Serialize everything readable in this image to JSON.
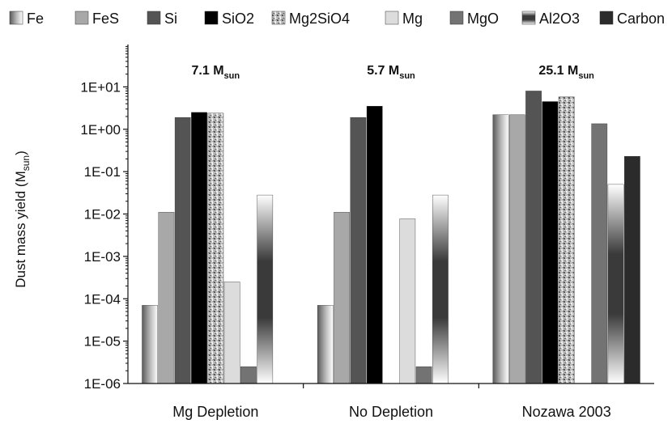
{
  "chart_data": {
    "type": "bar",
    "scale": "log",
    "title": "",
    "xlabel": "",
    "ylabel": "Dust mass yield (M",
    "ylabel_sub": "sun",
    "ylabel_end": ")",
    "ylim": [
      1e-06,
      100
    ],
    "yticks": [
      {
        "value": 1e-06,
        "label": "1E-06"
      },
      {
        "value": 1e-05,
        "label": "1E-05"
      },
      {
        "value": 0.0001,
        "label": "1E-04"
      },
      {
        "value": 0.001,
        "label": "1E-03"
      },
      {
        "value": 0.01,
        "label": "1E-02"
      },
      {
        "value": 0.1,
        "label": "1E-01"
      },
      {
        "value": 1,
        "label": "1E+00"
      },
      {
        "value": 10,
        "label": "1E+01"
      }
    ],
    "categories": [
      "Mg Depletion",
      "No Depletion",
      "Nozawa 2003"
    ],
    "annotations": [
      {
        "main": "7.1 M",
        "sub": "sun"
      },
      {
        "main": "5.7 M",
        "sub": "sun"
      },
      {
        "main": "25.1 M",
        "sub": "sun"
      }
    ],
    "legend_position": "top",
    "series": [
      {
        "name": "Fe",
        "fill": "grad-fe",
        "values": [
          7e-05,
          7e-05,
          2.2
        ]
      },
      {
        "name": "FeS",
        "fill": "#a8a8a8",
        "values": [
          0.011,
          0.011,
          2.2
        ]
      },
      {
        "name": "Si",
        "fill": "#545454",
        "values": [
          1.9,
          1.9,
          8.0
        ]
      },
      {
        "name": "SiO2",
        "fill": "#000000",
        "values": [
          2.5,
          3.5,
          4.5
        ]
      },
      {
        "name": "Mg2SiO4",
        "fill": "pat-speckle",
        "values": [
          2.4,
          null,
          5.8
        ]
      },
      {
        "name": "Mg",
        "fill": "#dcdcdc",
        "values": [
          0.00025,
          0.0077,
          null
        ]
      },
      {
        "name": "MgO",
        "fill": "#737373",
        "values": [
          2.5e-06,
          2.5e-06,
          1.35
        ]
      },
      {
        "name": "Al2O3",
        "fill": "grad-al",
        "values": [
          0.028,
          0.028,
          0.05
        ]
      },
      {
        "name": "Carbon",
        "fill": "#2b2b2b",
        "values": [
          null,
          null,
          0.23
        ]
      }
    ]
  }
}
